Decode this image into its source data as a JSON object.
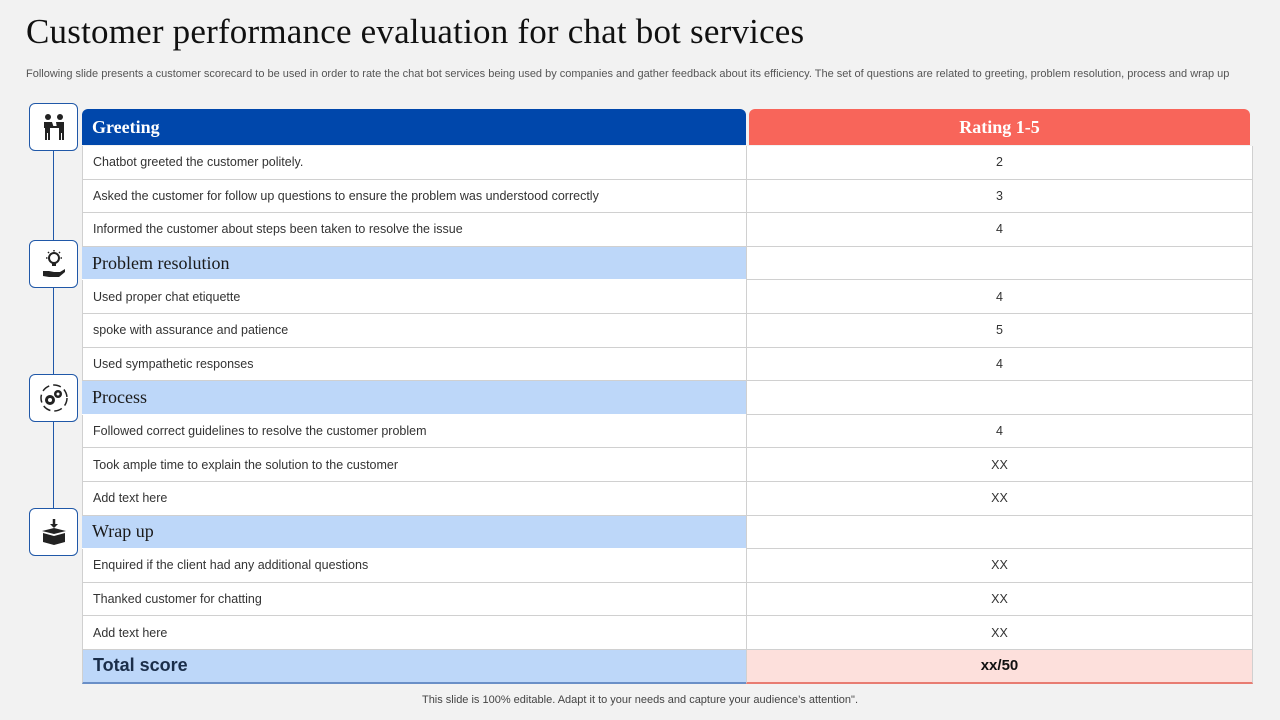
{
  "title": "Customer performance evaluation for chat bot services",
  "subtitle": "Following slide presents a customer scorecard to be used in order to rate the chat bot services being used by companies and gather feedback about its efficiency. The set of questions are related to greeting, problem resolution, process and wrap up",
  "table": {
    "header_left": "Greeting",
    "header_right": "Rating 1-5",
    "greeting_rows": [
      {
        "label": "Chatbot greeted the customer politely.",
        "rating": "2"
      },
      {
        "label": "Asked the customer for follow up questions to ensure the problem was understood correctly",
        "rating": "3"
      },
      {
        "label": "Informed  the customer about steps been taken to resolve the issue",
        "rating": "4"
      }
    ],
    "section_problem": "Problem resolution",
    "problem_rows": [
      {
        "label": "Used proper chat etiquette",
        "rating": "4"
      },
      {
        "label": "spoke with assurance and patience",
        "rating": "5"
      },
      {
        "label": "Used sympathetic responses",
        "rating": "4"
      }
    ],
    "section_process": "Process",
    "process_rows": [
      {
        "label": "Followed correct guidelines to resolve  the customer problem",
        "rating": "4"
      },
      {
        "label": "Took ample time to explain the solution to the customer",
        "rating": "XX"
      },
      {
        "label": "Add text here",
        "rating": "XX"
      }
    ],
    "section_wrap": "Wrap up",
    "wrap_rows": [
      {
        "label": "Enquired  if the client had any additional questions",
        "rating": "XX"
      },
      {
        "label": "Thanked customer for chatting",
        "rating": "XX"
      },
      {
        "label": "Add text here",
        "rating": "XX"
      }
    ],
    "total_label": "Total score",
    "total_value": "xx/50"
  },
  "icons": [
    "handshake-icon",
    "hand-lightbulb-icon",
    "gears-cycle-icon",
    "box-download-icon"
  ],
  "colors": {
    "header_blue": "#0047ab",
    "header_red": "#f8655a",
    "section_blue": "#bdd7f9",
    "total_pink": "#fde0dc",
    "accent_line": "#2058a8"
  },
  "footer": "This slide is 100% editable. Adapt it to your needs and capture your audience’s attention\"."
}
